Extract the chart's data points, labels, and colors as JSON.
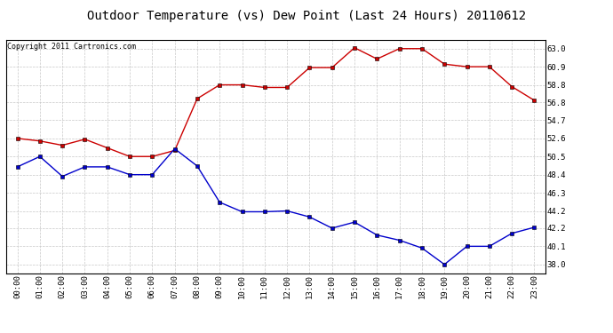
{
  "title": "Outdoor Temperature (vs) Dew Point (Last 24 Hours) 20110612",
  "copyright": "Copyright 2011 Cartronics.com",
  "x_labels": [
    "00:00",
    "01:00",
    "02:00",
    "03:00",
    "04:00",
    "05:00",
    "06:00",
    "07:00",
    "08:00",
    "09:00",
    "10:00",
    "11:00",
    "12:00",
    "13:00",
    "14:00",
    "15:00",
    "16:00",
    "17:00",
    "18:00",
    "19:00",
    "20:00",
    "21:00",
    "22:00",
    "23:00"
  ],
  "temp_red": [
    52.6,
    52.3,
    51.8,
    52.5,
    51.5,
    50.5,
    50.5,
    51.2,
    57.2,
    58.8,
    58.8,
    58.5,
    58.5,
    60.8,
    60.8,
    63.1,
    61.8,
    63.0,
    63.0,
    61.2,
    60.9,
    60.9,
    58.6,
    57.0
  ],
  "dew_blue": [
    49.3,
    50.5,
    48.2,
    49.3,
    49.3,
    48.4,
    48.4,
    51.4,
    49.4,
    45.2,
    44.1,
    44.1,
    44.2,
    43.5,
    42.2,
    42.9,
    41.4,
    40.8,
    39.9,
    38.0,
    40.1,
    40.1,
    41.6,
    42.3
  ],
  "y_ticks": [
    38.0,
    40.1,
    42.2,
    44.2,
    46.3,
    48.4,
    50.5,
    52.6,
    54.7,
    56.8,
    58.8,
    60.9,
    63.0
  ],
  "y_min": 37.0,
  "y_max": 64.0,
  "red_color": "#cc0000",
  "blue_color": "#0000cc",
  "bg_color": "#ffffff",
  "grid_color": "#c8c8c8",
  "title_fontsize": 10,
  "copyright_fontsize": 6,
  "tick_fontsize": 6.5,
  "figwidth": 6.9,
  "figheight": 3.75,
  "dpi": 100
}
